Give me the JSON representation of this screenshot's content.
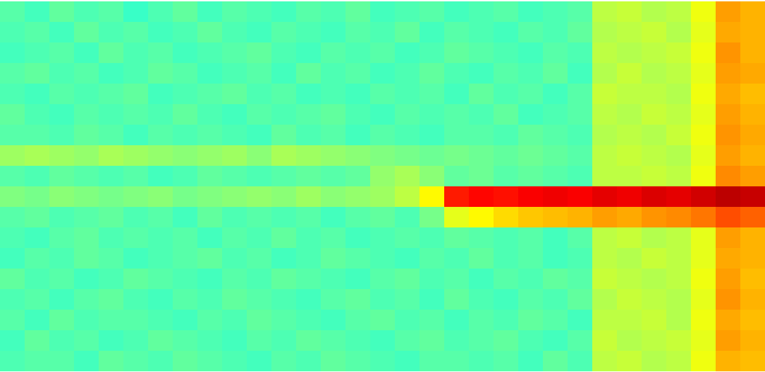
{
  "chart_data": {
    "type": "heatmap",
    "color": "jet",
    "tick_labels": false,
    "zlim": [
      0,
      100
    ],
    "cells": [
      [
        46,
        44,
        47,
        45,
        46,
        43,
        45,
        47,
        44,
        46,
        45,
        44,
        46,
        45,
        47,
        44,
        45,
        46,
        44,
        45,
        46,
        44,
        45,
        46,
        56,
        57,
        55,
        56,
        61,
        72,
        70
      ],
      [
        45,
        46,
        44,
        47,
        45,
        46,
        44,
        45,
        47,
        45,
        44,
        46,
        45,
        44,
        46,
        45,
        47,
        44,
        46,
        45,
        44,
        46,
        45,
        47,
        55,
        56,
        57,
        55,
        60,
        71,
        70
      ],
      [
        44,
        45,
        46,
        44,
        47,
        45,
        46,
        44,
        45,
        46,
        47,
        45,
        44,
        46,
        45,
        46,
        44,
        45,
        47,
        46,
        45,
        44,
        46,
        45,
        56,
        55,
        56,
        57,
        61,
        73,
        70
      ],
      [
        46,
        47,
        45,
        46,
        44,
        45,
        47,
        46,
        44,
        45,
        46,
        44,
        47,
        45,
        46,
        44,
        45,
        47,
        45,
        44,
        46,
        45,
        47,
        44,
        55,
        57,
        55,
        56,
        60,
        72,
        71
      ],
      [
        45,
        44,
        46,
        45,
        46,
        47,
        44,
        45,
        46,
        47,
        45,
        46,
        44,
        45,
        44,
        46,
        45,
        46,
        44,
        47,
        45,
        46,
        44,
        46,
        57,
        56,
        56,
        55,
        61,
        71,
        69
      ],
      [
        47,
        45,
        44,
        46,
        45,
        46,
        45,
        47,
        45,
        44,
        46,
        45,
        46,
        47,
        45,
        44,
        46,
        45,
        46,
        45,
        47,
        44,
        45,
        46,
        56,
        55,
        57,
        56,
        60,
        72,
        70
      ],
      [
        46,
        46,
        45,
        47,
        46,
        44,
        46,
        45,
        46,
        45,
        44,
        47,
        45,
        46,
        44,
        46,
        45,
        44,
        46,
        46,
        45,
        47,
        46,
        45,
        55,
        56,
        55,
        57,
        61,
        73,
        71
      ],
      [
        53,
        54,
        53,
        52,
        54,
        53,
        52,
        51,
        52,
        53,
        51,
        54,
        53,
        52,
        51,
        50,
        49,
        48,
        49,
        48,
        47,
        48,
        47,
        46,
        56,
        57,
        56,
        55,
        60,
        72,
        70
      ],
      [
        46,
        45,
        47,
        46,
        45,
        46,
        44,
        45,
        47,
        46,
        45,
        46,
        47,
        46,
        47,
        52,
        54,
        51,
        47,
        48,
        46,
        47,
        46,
        45,
        56,
        56,
        57,
        56,
        61,
        74,
        72
      ],
      [
        50,
        49,
        51,
        50,
        49,
        50,
        51,
        49,
        50,
        51,
        52,
        51,
        53,
        51,
        52,
        53,
        56,
        63,
        85,
        87,
        86,
        88,
        89,
        88,
        90,
        89,
        91,
        90,
        92,
        94,
        93
      ],
      [
        46,
        47,
        45,
        46,
        47,
        45,
        46,
        44,
        47,
        45,
        46,
        45,
        46,
        44,
        46,
        47,
        45,
        49,
        60,
        63,
        66,
        68,
        69,
        70,
        72,
        71,
        73,
        74,
        76,
        80,
        78
      ],
      [
        45,
        44,
        46,
        47,
        45,
        46,
        45,
        46,
        44,
        46,
        45,
        47,
        45,
        46,
        44,
        45,
        46,
        45,
        47,
        46,
        45,
        46,
        44,
        46,
        56,
        57,
        55,
        56,
        60,
        72,
        70
      ],
      [
        44,
        46,
        45,
        47,
        46,
        44,
        45,
        46,
        47,
        45,
        46,
        44,
        45,
        47,
        46,
        45,
        44,
        46,
        45,
        47,
        45,
        46,
        44,
        45,
        56,
        55,
        57,
        56,
        60,
        71,
        70
      ],
      [
        47,
        45,
        46,
        44,
        45,
        47,
        46,
        45,
        44,
        46,
        45,
        47,
        46,
        45,
        44,
        46,
        47,
        45,
        46,
        44,
        46,
        45,
        47,
        46,
        57,
        56,
        55,
        56,
        61,
        72,
        69
      ],
      [
        45,
        46,
        44,
        46,
        47,
        45,
        44,
        46,
        45,
        47,
        46,
        45,
        44,
        46,
        47,
        45,
        46,
        44,
        47,
        45,
        44,
        46,
        45,
        47,
        55,
        57,
        56,
        55,
        60,
        73,
        70
      ],
      [
        46,
        44,
        47,
        45,
        46,
        46,
        45,
        44,
        46,
        45,
        47,
        46,
        45,
        44,
        46,
        47,
        45,
        46,
        44,
        46,
        45,
        47,
        46,
        44,
        56,
        56,
        57,
        55,
        61,
        71,
        69
      ],
      [
        44,
        47,
        45,
        46,
        44,
        45,
        47,
        46,
        45,
        44,
        46,
        45,
        47,
        46,
        45,
        44,
        46,
        47,
        45,
        46,
        47,
        45,
        44,
        46,
        57,
        55,
        56,
        57,
        60,
        72,
        70
      ],
      [
        45,
        46,
        46,
        44,
        47,
        46,
        45,
        47,
        46,
        45,
        44,
        46,
        45,
        47,
        46,
        45,
        44,
        46,
        46,
        45,
        46,
        44,
        47,
        45,
        56,
        57,
        55,
        56,
        61,
        70,
        69
      ]
    ]
  }
}
